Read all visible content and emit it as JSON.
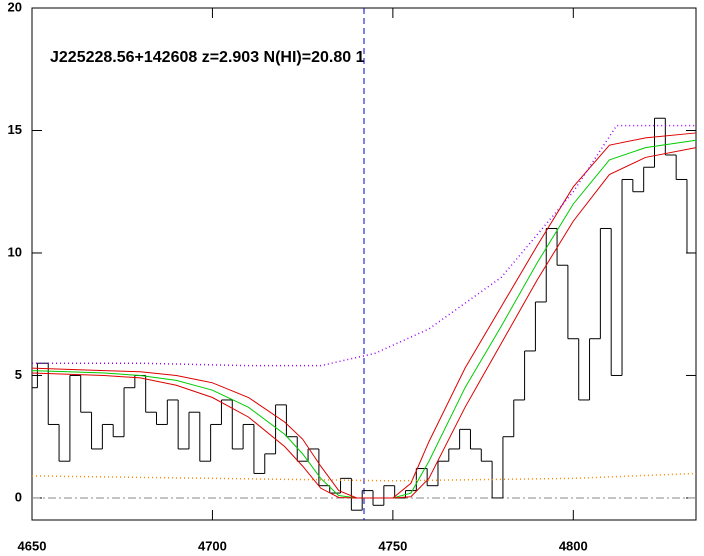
{
  "chart_data": {
    "type": "line",
    "title": "J225228.56+142608 z=2.903 N(HI)=20.80 1",
    "xlim": [
      4650,
      4834
    ],
    "ylim": [
      -0.9,
      20
    ],
    "xticks": [
      4650,
      4700,
      4750,
      4800
    ],
    "yticks": [
      0,
      5,
      10,
      15,
      20
    ],
    "hline": 0,
    "vline": 4742,
    "series": [
      {
        "color": "#000000",
        "step": true,
        "x": [
          4650,
          4653,
          4656,
          4659,
          4662,
          4665,
          4668,
          4671,
          4674,
          4677,
          4680,
          4683,
          4686,
          4689,
          4692,
          4695,
          4698,
          4701,
          4704,
          4707,
          4710,
          4713,
          4716,
          4719,
          4722,
          4725,
          4728,
          4731,
          4734,
          4737,
          4740,
          4743,
          4746,
          4749,
          4752,
          4755,
          4758,
          4761,
          4764,
          4767,
          4770,
          4773,
          4776,
          4779,
          4782,
          4785,
          4788,
          4791,
          4794,
          4797,
          4800,
          4803,
          4806,
          4809,
          4812,
          4815,
          4818,
          4821,
          4824,
          4827,
          4830,
          4833
        ],
        "values": [
          4.5,
          5.5,
          3.0,
          1.5,
          5.0,
          3.5,
          2.0,
          3.0,
          2.5,
          4.5,
          5.0,
          3.5,
          3.0,
          4.0,
          2.0,
          3.5,
          1.5,
          3.0,
          4.0,
          2.0,
          3.0,
          1.0,
          1.8,
          3.8,
          2.5,
          1.5,
          2.0,
          0.5,
          0.2,
          0.8,
          -0.5,
          0.3,
          -0.3,
          0.5,
          0.0,
          0.3,
          1.2,
          0.5,
          1.5,
          2.0,
          2.8,
          2.0,
          1.5,
          0.0,
          2.5,
          4.0,
          6.0,
          8.0,
          11.0,
          9.5,
          6.5,
          4.0,
          6.5,
          11.0,
          5.0,
          13.0,
          12.5,
          13.5,
          15.5,
          14.0,
          13.0,
          10.0
        ]
      },
      {
        "color": "#00cc00",
        "x": [
          4650,
          4660,
          4670,
          4680,
          4690,
          4700,
          4710,
          4720,
          4725,
          4730,
          4735,
          4740,
          4750,
          4755,
          4760,
          4770,
          4780,
          4790,
          4800,
          4810,
          4820,
          4834
        ],
        "values": [
          5.2,
          5.15,
          5.1,
          5.0,
          4.8,
          4.4,
          3.7,
          2.6,
          1.8,
          0.8,
          0.1,
          0,
          0,
          0.2,
          1.5,
          4.5,
          7.0,
          9.6,
          12.0,
          13.8,
          14.3,
          14.6
        ]
      },
      {
        "color": "#dd0000",
        "x": [
          4650,
          4660,
          4670,
          4680,
          4690,
          4700,
          4710,
          4720,
          4725,
          4730,
          4735,
          4740,
          4750,
          4755,
          4760,
          4770,
          4780,
          4790,
          4800,
          4810,
          4820,
          4834
        ],
        "values": [
          5.3,
          5.25,
          5.2,
          5.15,
          5.0,
          4.7,
          4.1,
          3.1,
          2.4,
          1.3,
          0.3,
          0,
          0,
          0.6,
          2.3,
          5.3,
          7.8,
          10.3,
          12.7,
          14.4,
          14.7,
          14.9
        ]
      },
      {
        "color": "#dd0000",
        "x": [
          4650,
          4660,
          4670,
          4680,
          4690,
          4700,
          4710,
          4720,
          4725,
          4730,
          4735,
          4740,
          4750,
          4755,
          4760,
          4770,
          4780,
          4790,
          4800,
          4810,
          4820,
          4834
        ],
        "values": [
          5.1,
          5.05,
          5.0,
          4.9,
          4.6,
          4.1,
          3.3,
          2.1,
          1.3,
          0.4,
          0.02,
          0,
          0,
          0.05,
          0.8,
          3.7,
          6.3,
          8.9,
          11.3,
          13.2,
          13.9,
          14.3
        ]
      },
      {
        "color": "#9900ff",
        "dash": "dotted",
        "x": [
          4650,
          4680,
          4710,
          4730,
          4745,
          4760,
          4780,
          4800,
          4812,
          4834
        ],
        "values": [
          5.5,
          5.5,
          5.4,
          5.4,
          5.9,
          6.9,
          9.0,
          12.5,
          15.2,
          15.2
        ]
      },
      {
        "color": "#ff8800",
        "dash": "dotted",
        "x": [
          4650,
          4700,
          4750,
          4800,
          4834
        ],
        "values": [
          0.9,
          0.8,
          0.7,
          0.8,
          1.0
        ]
      }
    ]
  }
}
